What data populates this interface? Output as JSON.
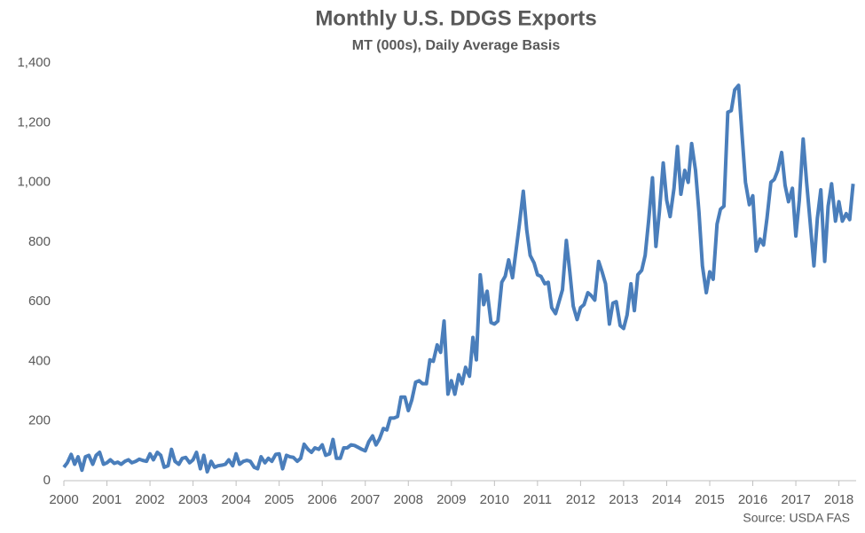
{
  "chart_data": {
    "type": "line",
    "title": "Monthly U.S. DDGS Exports",
    "subtitle": "MT (000s), Daily Average Basis",
    "source": "Source: USDA FAS",
    "x": [
      2000,
      2000.08,
      2000.17,
      2000.25,
      2000.33,
      2000.42,
      2000.5,
      2000.58,
      2000.67,
      2000.75,
      2000.83,
      2000.92,
      2001,
      2001.08,
      2001.17,
      2001.25,
      2001.33,
      2001.42,
      2001.5,
      2001.58,
      2001.67,
      2001.75,
      2001.83,
      2001.92,
      2002,
      2002.08,
      2002.17,
      2002.25,
      2002.33,
      2002.42,
      2002.5,
      2002.58,
      2002.67,
      2002.75,
      2002.83,
      2002.92,
      2003,
      2003.08,
      2003.17,
      2003.25,
      2003.33,
      2003.42,
      2003.5,
      2003.58,
      2003.67,
      2003.75,
      2003.83,
      2003.92,
      2004,
      2004.08,
      2004.17,
      2004.25,
      2004.33,
      2004.42,
      2004.5,
      2004.58,
      2004.67,
      2004.75,
      2004.83,
      2004.92,
      2005,
      2005.08,
      2005.17,
      2005.25,
      2005.33,
      2005.42,
      2005.5,
      2005.58,
      2005.67,
      2005.75,
      2005.83,
      2005.92,
      2006,
      2006.08,
      2006.17,
      2006.25,
      2006.33,
      2006.42,
      2006.5,
      2006.58,
      2006.67,
      2006.75,
      2006.83,
      2006.92,
      2007,
      2007.08,
      2007.17,
      2007.25,
      2007.33,
      2007.42,
      2007.5,
      2007.58,
      2007.67,
      2007.75,
      2007.83,
      2007.92,
      2008,
      2008.08,
      2008.17,
      2008.25,
      2008.33,
      2008.42,
      2008.5,
      2008.58,
      2008.67,
      2008.75,
      2008.83,
      2008.92,
      2009,
      2009.08,
      2009.17,
      2009.25,
      2009.33,
      2009.42,
      2009.5,
      2009.58,
      2009.67,
      2009.75,
      2009.83,
      2009.92,
      2010,
      2010.08,
      2010.17,
      2010.25,
      2010.33,
      2010.42,
      2010.5,
      2010.58,
      2010.67,
      2010.75,
      2010.83,
      2010.92,
      2011,
      2011.08,
      2011.17,
      2011.25,
      2011.33,
      2011.42,
      2011.5,
      2011.58,
      2011.67,
      2011.75,
      2011.83,
      2011.92,
      2012,
      2012.08,
      2012.17,
      2012.25,
      2012.33,
      2012.42,
      2012.5,
      2012.58,
      2012.67,
      2012.75,
      2012.83,
      2012.92,
      2013,
      2013.08,
      2013.17,
      2013.25,
      2013.33,
      2013.42,
      2013.5,
      2013.58,
      2013.67,
      2013.75,
      2013.83,
      2013.92,
      2014,
      2014.08,
      2014.17,
      2014.25,
      2014.33,
      2014.42,
      2014.5,
      2014.58,
      2014.67,
      2014.75,
      2014.83,
      2014.92,
      2015,
      2015.08,
      2015.17,
      2015.25,
      2015.33,
      2015.42,
      2015.5,
      2015.58,
      2015.67,
      2015.75,
      2015.83,
      2015.92,
      2016,
      2016.08,
      2016.17,
      2016.25,
      2016.33,
      2016.42,
      2016.5,
      2016.58,
      2016.67,
      2016.75,
      2016.83,
      2016.92,
      2017,
      2017.08,
      2017.17,
      2017.25,
      2017.33,
      2017.42,
      2017.5,
      2017.58,
      2017.67,
      2017.75,
      2017.83,
      2017.92,
      2018,
      2018.08,
      2018.17,
      2018.25,
      2018.33
    ],
    "series": [
      {
        "name": "DDGS Exports",
        "color": "#4a7ebb",
        "values": [
          45,
          60,
          88,
          55,
          80,
          35,
          80,
          85,
          55,
          85,
          95,
          55,
          60,
          70,
          58,
          62,
          55,
          65,
          70,
          60,
          65,
          72,
          68,
          65,
          90,
          70,
          95,
          85,
          45,
          50,
          105,
          65,
          55,
          75,
          78,
          60,
          70,
          95,
          40,
          85,
          30,
          65,
          45,
          50,
          52,
          55,
          70,
          50,
          90,
          55,
          65,
          68,
          65,
          45,
          40,
          80,
          60,
          75,
          65,
          88,
          90,
          40,
          85,
          80,
          78,
          65,
          75,
          122,
          105,
          95,
          110,
          105,
          120,
          85,
          90,
          138,
          75,
          75,
          110,
          110,
          120,
          118,
          112,
          105,
          100,
          130,
          150,
          120,
          140,
          175,
          170,
          210,
          210,
          215,
          280,
          280,
          235,
          270,
          330,
          335,
          325,
          325,
          405,
          400,
          455,
          430,
          535,
          290,
          335,
          290,
          355,
          325,
          380,
          350,
          480,
          405,
          690,
          590,
          635,
          530,
          525,
          535,
          665,
          685,
          740,
          680,
          770,
          860,
          970,
          840,
          755,
          730,
          690,
          685,
          660,
          665,
          580,
          560,
          600,
          640,
          805,
          700,
          585,
          540,
          580,
          590,
          630,
          620,
          605,
          735,
          700,
          660,
          525,
          595,
          600,
          520,
          510,
          555,
          660,
          570,
          690,
          705,
          755,
          870,
          1015,
          785,
          900,
          1065,
          940,
          885,
          980,
          1120,
          960,
          1040,
          1000,
          1130,
          1040,
          900,
          720,
          630,
          700,
          675,
          860,
          910,
          920,
          1235,
          1240,
          1310,
          1325,
          1160,
          1000,
          925,
          955,
          770,
          810,
          790,
          880,
          1000,
          1010,
          1040,
          1100,
          990,
          935,
          980,
          820,
          940,
          1145,
          1000,
          870,
          720,
          880,
          975,
          735,
          920,
          995,
          870,
          935,
          870,
          895,
          875,
          995
        ]
      }
    ],
    "xlim": [
      2000,
      2018.4
    ],
    "xticks": [
      2000,
      2001,
      2002,
      2003,
      2004,
      2005,
      2006,
      2007,
      2008,
      2009,
      2010,
      2011,
      2012,
      2013,
      2014,
      2015,
      2016,
      2017,
      2018
    ],
    "ylim": [
      0,
      1400
    ],
    "yticks": [
      0,
      200,
      400,
      600,
      800,
      {
        "value": 1000,
        "label": "1,000"
      },
      {
        "value": 1200,
        "label": "1,200"
      },
      {
        "value": 1400,
        "label": "1,400"
      }
    ],
    "grid": false
  }
}
